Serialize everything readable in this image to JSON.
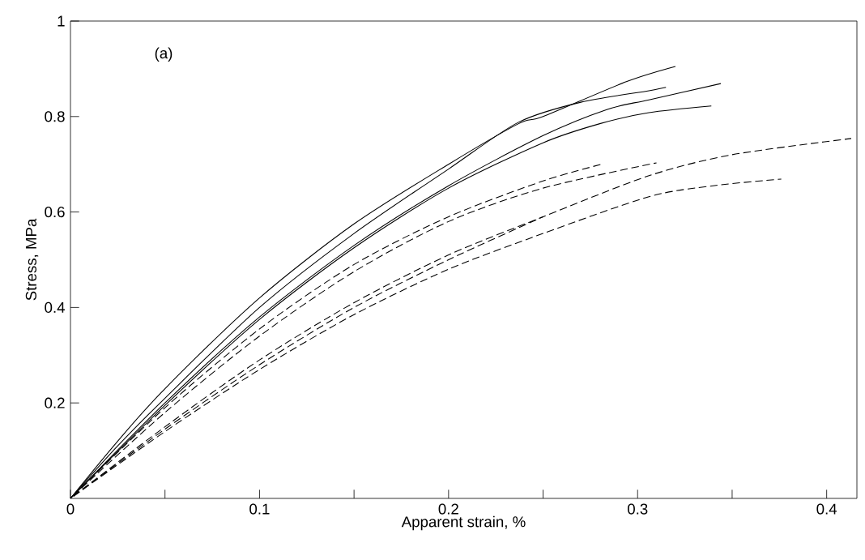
{
  "chart_data": {
    "type": "line",
    "xlabel": "Apparent strain, %",
    "ylabel": "Stress, MPa",
    "annotations": [
      "(a)"
    ],
    "marker": "none",
    "xlim": [
      0,
      0.416
    ],
    "ylim": [
      0,
      1
    ],
    "xticks": [
      0,
      {
        "value": 0.05,
        "label": null
      },
      0.1,
      {
        "value": 0.15,
        "label": null
      },
      0.2,
      {
        "value": 0.25,
        "label": null
      },
      0.3,
      {
        "value": 0.35,
        "label": null
      },
      0.4
    ],
    "yticks": [
      0.2,
      0.4,
      0.6,
      0.8,
      1
    ],
    "series": [
      {
        "color": "#000000",
        "line_style": "solid",
        "x": [
          0,
          0.025,
          0.05,
          0.1,
          0.15,
          0.2,
          0.237,
          0.25,
          0.294,
          0.32
        ],
        "values": [
          0,
          0.12,
          0.23,
          0.42,
          0.575,
          0.7,
          0.785,
          0.8,
          0.873,
          0.905
        ]
      },
      {
        "color": "#000000",
        "line_style": "solid",
        "x": [
          0,
          0.025,
          0.05,
          0.1,
          0.15,
          0.2,
          0.237,
          0.27,
          0.306,
          0.315
        ],
        "values": [
          0,
          0.11,
          0.21,
          0.4,
          0.555,
          0.69,
          0.788,
          0.83,
          0.854,
          0.861
        ]
      },
      {
        "color": "#000000",
        "line_style": "solid",
        "x": [
          0,
          0.05,
          0.1,
          0.15,
          0.2,
          0.25,
          0.284,
          0.306,
          0.344
        ],
        "values": [
          0,
          0.2,
          0.38,
          0.53,
          0.655,
          0.76,
          0.815,
          0.835,
          0.869
        ]
      },
      {
        "color": "#000000",
        "line_style": "solid",
        "x": [
          0,
          0.05,
          0.1,
          0.15,
          0.2,
          0.25,
          0.28,
          0.306,
          0.339
        ],
        "values": [
          0,
          0.195,
          0.375,
          0.525,
          0.65,
          0.745,
          0.785,
          0.808,
          0.822
        ]
      },
      {
        "color": "#000000",
        "line_style": "dashed",
        "x": [
          0,
          0.05,
          0.1,
          0.15,
          0.2,
          0.25,
          0.281
        ],
        "values": [
          0,
          0.19,
          0.355,
          0.49,
          0.59,
          0.665,
          0.7
        ]
      },
      {
        "color": "#000000",
        "line_style": "dashed",
        "x": [
          0,
          0.05,
          0.1,
          0.15,
          0.2,
          0.25,
          0.31
        ],
        "values": [
          0,
          0.18,
          0.34,
          0.475,
          0.58,
          0.65,
          0.703
        ]
      },
      {
        "color": "#000000",
        "line_style": "dashed",
        "x": [
          0,
          0.05,
          0.1,
          0.15,
          0.2,
          0.25,
          0.306,
          0.35,
          0.413
        ],
        "values": [
          0,
          0.15,
          0.29,
          0.41,
          0.51,
          0.59,
          0.676,
          0.72,
          0.754
        ]
      },
      {
        "color": "#000000",
        "line_style": "dashed",
        "x": [
          0,
          0.05,
          0.1,
          0.15,
          0.2,
          0.25,
          0.306,
          0.34,
          0.376
        ],
        "values": [
          0,
          0.14,
          0.27,
          0.385,
          0.48,
          0.555,
          0.632,
          0.655,
          0.669
        ]
      },
      {
        "color": "#000000",
        "line_style": "dashed",
        "x": [
          0,
          0.05,
          0.1,
          0.15,
          0.2,
          0.25
        ],
        "values": [
          0,
          0.145,
          0.28,
          0.4,
          0.5,
          0.59
        ]
      }
    ]
  }
}
